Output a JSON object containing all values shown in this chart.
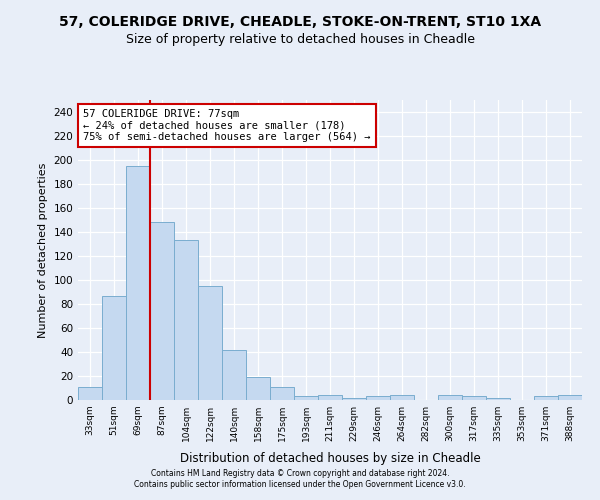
{
  "title1": "57, COLERIDGE DRIVE, CHEADLE, STOKE-ON-TRENT, ST10 1XA",
  "title2": "Size of property relative to detached houses in Cheadle",
  "xlabel": "Distribution of detached houses by size in Cheadle",
  "ylabel": "Number of detached properties",
  "categories": [
    "33sqm",
    "51sqm",
    "69sqm",
    "87sqm",
    "104sqm",
    "122sqm",
    "140sqm",
    "158sqm",
    "175sqm",
    "193sqm",
    "211sqm",
    "229sqm",
    "246sqm",
    "264sqm",
    "282sqm",
    "300sqm",
    "317sqm",
    "335sqm",
    "353sqm",
    "371sqm",
    "388sqm"
  ],
  "values": [
    11,
    87,
    195,
    148,
    133,
    95,
    42,
    19,
    11,
    3,
    4,
    2,
    3,
    4,
    0,
    4,
    3,
    2,
    0,
    3,
    4
  ],
  "bar_color": "#c5d9f0",
  "bar_edge_color": "#7aadcf",
  "red_line_color": "#cc0000",
  "annotation_line1": "57 COLERIDGE DRIVE: 77sqm",
  "annotation_line2": "← 24% of detached houses are smaller (178)",
  "annotation_line3": "75% of semi-detached houses are larger (564) →",
  "annotation_box_color": "#ffffff",
  "annotation_box_edge": "#cc0000",
  "ylim": [
    0,
    250
  ],
  "yticks": [
    0,
    20,
    40,
    60,
    80,
    100,
    120,
    140,
    160,
    180,
    200,
    220,
    240
  ],
  "footer1": "Contains HM Land Registry data © Crown copyright and database right 2024.",
  "footer2": "Contains public sector information licensed under the Open Government Licence v3.0.",
  "bg_color": "#e8eef8",
  "plot_bg_color": "#e8eef8",
  "grid_color": "#ffffff",
  "title_fontsize": 10,
  "subtitle_fontsize": 9
}
